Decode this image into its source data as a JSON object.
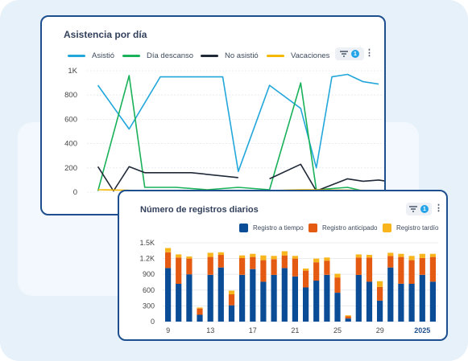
{
  "colors": {
    "asistio": "#22a7db",
    "descanso": "#19b15a",
    "no_asistio": "#1f2937",
    "vacaciones": "#f5b800",
    "a_tiempo": "#0a4d96",
    "anticipado": "#e55a12",
    "tardio": "#f8b51c",
    "border": "#1d4f8f",
    "accent": "#23a4e8"
  },
  "card1": {
    "title": "Asistencia por día",
    "legend": [
      "Asistió",
      "Día descanso",
      "No asistió",
      "Vacaciones"
    ],
    "filter_icon": "filter-icon",
    "filter_count": "1",
    "menu_icon": "kebab-menu-icon",
    "menu_glyph": "⋮"
  },
  "card2": {
    "title": "Número de registros diarios",
    "legend": [
      "Registro a tiempo",
      "Registro anticipado",
      "Registro tardío"
    ],
    "filter_icon": "filter-icon",
    "filter_count": "1",
    "menu_icon": "kebab-menu-icon",
    "menu_glyph": "⋮"
  },
  "chart_data": [
    {
      "type": "line",
      "title": "Asistencia por día",
      "y_ticks": [
        "0",
        "200",
        "400",
        "600",
        "800",
        "1K"
      ],
      "ylim": [
        0,
        1000
      ],
      "x_tick_labels": [
        {
          "x": 9,
          "label": "9"
        }
      ],
      "grid": true,
      "legend_position": "top",
      "series": [
        {
          "name": "Asistió",
          "points": [
            [
              7,
              880
            ],
            [
              9,
              520
            ],
            [
              11,
              950
            ],
            [
              13,
              950
            ],
            [
              15,
              950
            ],
            [
              16,
              170
            ],
            [
              18,
              880
            ],
            [
              20,
              690
            ],
            [
              21,
              200
            ],
            [
              22,
              950
            ],
            [
              23,
              970
            ],
            [
              24,
              910
            ],
            [
              25,
              890
            ]
          ]
        },
        {
          "name": "Día descanso",
          "points": [
            [
              7,
              10
            ],
            [
              9,
              960
            ],
            [
              10,
              40
            ],
            [
              12,
              40
            ],
            [
              14,
              20
            ],
            [
              16,
              40
            ],
            [
              18,
              20
            ],
            [
              20,
              900
            ],
            [
              21,
              20
            ],
            [
              23,
              40
            ],
            [
              24,
              10
            ],
            [
              25,
              10
            ]
          ]
        },
        {
          "name": "No asistió",
          "points": [
            [
              7,
              210
            ],
            [
              8,
              10
            ],
            [
              9,
              210
            ],
            [
              10,
              160
            ],
            [
              13,
              160
            ],
            [
              16,
              120
            ],
            [
              null,
              null
            ],
            [
              18,
              110
            ],
            [
              20,
              230
            ],
            [
              21,
              10
            ],
            [
              23,
              110
            ],
            [
              24,
              90
            ],
            [
              25,
              100
            ],
            [
              26,
              80
            ]
          ]
        },
        {
          "name": "Vacaciones",
          "points": [
            [
              7,
              20
            ],
            [
              9,
              15
            ],
            [
              11,
              10
            ],
            [
              14,
              15
            ],
            [
              17,
              10
            ],
            [
              20,
              20
            ],
            [
              24,
              15
            ],
            [
              25,
              10
            ]
          ]
        }
      ]
    },
    {
      "type": "bar",
      "stacked": true,
      "title": "Número de registros diarios",
      "y_ticks": [
        "0",
        "300",
        "600",
        "900",
        "1.2K",
        "1.5K"
      ],
      "ylim": [
        0,
        1500
      ],
      "x_tick_labels": [
        "9",
        "13",
        "17",
        "21",
        "25",
        "29",
        "2025"
      ],
      "legend_position": "top-right",
      "series": [
        {
          "name": "Registro a tiempo",
          "values": [
            1020,
            720,
            900,
            130,
            890,
            1030,
            310,
            890,
            1000,
            760,
            890,
            1020,
            860,
            650,
            780,
            890,
            550,
            60,
            890,
            760,
            400,
            1030,
            720,
            720,
            890,
            760
          ]
        },
        {
          "name": "Registro anticipado",
          "values": [
            300,
            500,
            300,
            120,
            340,
            240,
            210,
            320,
            230,
            410,
            300,
            240,
            340,
            320,
            350,
            270,
            290,
            40,
            330,
            460,
            260,
            220,
            510,
            450,
            320,
            470
          ]
        },
        {
          "name": "Registro tardío",
          "values": [
            80,
            60,
            40,
            20,
            80,
            50,
            70,
            50,
            60,
            90,
            60,
            80,
            50,
            40,
            70,
            60,
            70,
            20,
            60,
            50,
            110,
            60,
            60,
            80,
            80,
            60
          ]
        }
      ]
    }
  ]
}
